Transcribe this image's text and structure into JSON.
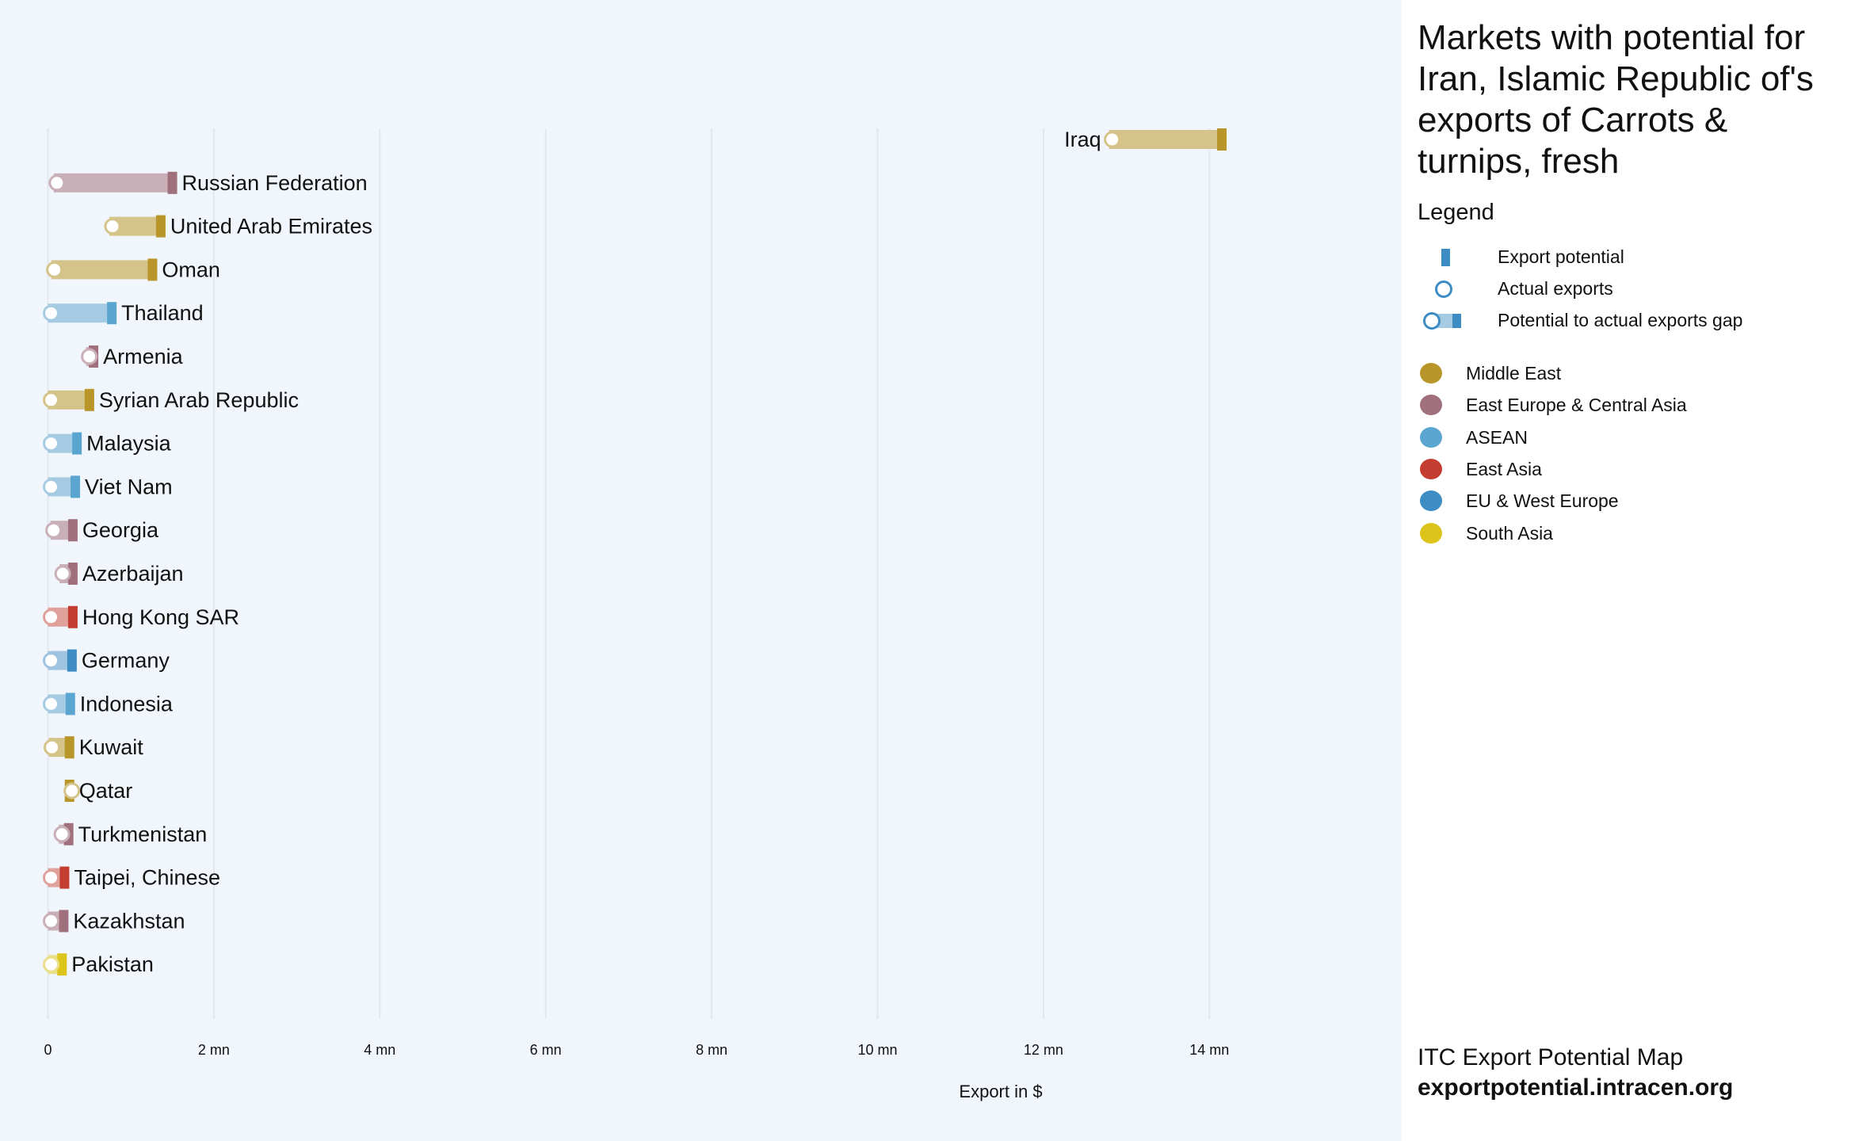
{
  "chart_data": {
    "type": "bar",
    "title": "Markets with potential for Iran, Islamic Republic of's exports of Carrots & turnips, fresh",
    "xlabel": "Export in $",
    "xlim": [
      0,
      14.5
    ],
    "unit": "mn",
    "x_ticks": [
      {
        "value": 0,
        "label": "0"
      },
      {
        "value": 2,
        "label": "2 mn"
      },
      {
        "value": 4,
        "label": "4 mn"
      },
      {
        "value": 6,
        "label": "6 mn"
      },
      {
        "value": 8,
        "label": "8 mn"
      },
      {
        "value": 10,
        "label": "10 mn"
      },
      {
        "value": 12,
        "label": "12 mn"
      },
      {
        "value": 14,
        "label": "14 mn"
      }
    ],
    "grid": true,
    "markets": [
      {
        "name": "Iraq",
        "region": "Middle East",
        "actual": 12.79,
        "potential": 14.15
      },
      {
        "name": "Russian Federation",
        "region": "East Europe & Central Asia",
        "actual": 0.07,
        "potential": 1.5
      },
      {
        "name": "United Arab Emirates",
        "region": "Middle East",
        "actual": 0.74,
        "potential": 1.36
      },
      {
        "name": "Oman",
        "region": "Middle East",
        "actual": 0.04,
        "potential": 1.26
      },
      {
        "name": "Thailand",
        "region": "ASEAN",
        "actual": 0.0,
        "potential": 0.77
      },
      {
        "name": "Armenia",
        "region": "East Europe & Central Asia",
        "actual": 0.46,
        "potential": 0.55
      },
      {
        "name": "Syrian Arab Republic",
        "region": "Middle East",
        "actual": 0.0,
        "potential": 0.5
      },
      {
        "name": "Malaysia",
        "region": "ASEAN",
        "actual": 0.0,
        "potential": 0.35
      },
      {
        "name": "Viet Nam",
        "region": "ASEAN",
        "actual": 0.0,
        "potential": 0.33
      },
      {
        "name": "Georgia",
        "region": "East Europe & Central Asia",
        "actual": 0.03,
        "potential": 0.3
      },
      {
        "name": "Azerbaijan",
        "region": "East Europe & Central Asia",
        "actual": 0.14,
        "potential": 0.3
      },
      {
        "name": "Hong Kong SAR",
        "region": "East Asia",
        "actual": 0.0,
        "potential": 0.3
      },
      {
        "name": "Germany",
        "region": "EU & West Europe",
        "actual": 0.0,
        "potential": 0.29
      },
      {
        "name": "Indonesia",
        "region": "ASEAN",
        "actual": 0.0,
        "potential": 0.27
      },
      {
        "name": "Kuwait",
        "region": "Middle East",
        "actual": 0.01,
        "potential": 0.26
      },
      {
        "name": "Qatar",
        "region": "Middle East",
        "actual": 0.25,
        "potential": 0.26
      },
      {
        "name": "Turkmenistan",
        "region": "East Europe & Central Asia",
        "actual": 0.13,
        "potential": 0.25
      },
      {
        "name": "Taipei, Chinese",
        "region": "East Asia",
        "actual": 0.0,
        "potential": 0.2
      },
      {
        "name": "Kazakhstan",
        "region": "East Europe & Central Asia",
        "actual": 0.0,
        "potential": 0.19
      },
      {
        "name": "Pakistan",
        "region": "South Asia",
        "actual": 0.0,
        "potential": 0.17
      }
    ]
  },
  "panel": {
    "title": "Markets with potential for Iran, Islamic Republic of's exports of Carrots & turnips, fresh",
    "legend_heading": "Legend",
    "symbols": [
      {
        "label": "Export potential",
        "icon": "bar-marker-icon"
      },
      {
        "label": "Actual exports",
        "icon": "circle-outline-icon"
      },
      {
        "label": "Potential to actual exports gap",
        "icon": "gap-bar-icon"
      }
    ],
    "regions": [
      {
        "label": "Middle East",
        "color": "#b8962a",
        "light": "#d4c48a"
      },
      {
        "label": "East Europe & Central Asia",
        "color": "#a0707c",
        "light": "#c9afb7"
      },
      {
        "label": "ASEAN",
        "color": "#5ba6d0",
        "light": "#a4cbe2"
      },
      {
        "label": "East Asia",
        "color": "#c43d31",
        "light": "#e0a19b"
      },
      {
        "label": "EU & West Europe",
        "color": "#3d8cc4",
        "light": "#9fc4e2"
      },
      {
        "label": "South Asia",
        "color": "#dcc41a",
        "light": "#ebe08a"
      }
    ],
    "footer_line1": "ITC Export Potential Map",
    "footer_line2": "exportpotential.intracen.org"
  }
}
